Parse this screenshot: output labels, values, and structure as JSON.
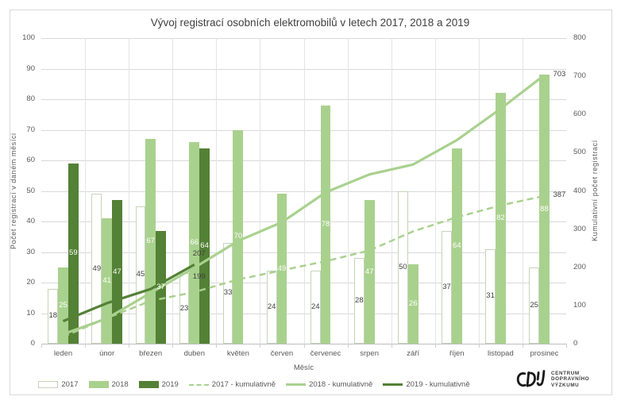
{
  "chart_data": {
    "type": "combo",
    "title": "Vývoj registrací osobních elektromobilů v letech 2017, 2018 a 2019",
    "xlabel": "Měsíc",
    "ylabel_left": "Počet registrací v daném měsíci",
    "ylabel_right": "Kumulativní počet registrací",
    "ylim_left": [
      0,
      100
    ],
    "ylim_right": [
      0,
      800
    ],
    "yticks_left": [
      0,
      10,
      20,
      30,
      40,
      50,
      60,
      70,
      80,
      90,
      100
    ],
    "yticks_right": [
      0,
      100,
      200,
      300,
      400,
      500,
      600,
      700,
      800
    ],
    "grid": true,
    "legend_position": "bottom",
    "categories": [
      "leden",
      "únor",
      "březen",
      "duben",
      "květen",
      "červen",
      "červenec",
      "srpen",
      "září",
      "říjen",
      "listopad",
      "prosinec"
    ],
    "bar_series": [
      {
        "name": "2017",
        "fill": "#ffffff",
        "border": "#c7d3ba",
        "label_color": "#404040",
        "values": [
          18,
          49,
          45,
          23,
          33,
          24,
          24,
          28,
          50,
          37,
          31,
          25
        ]
      },
      {
        "name": "2018",
        "fill": "#a9d18e",
        "border": "#a9d18e",
        "label_color": "#ffffff",
        "values": [
          25,
          41,
          67,
          66,
          70,
          49,
          78,
          47,
          26,
          64,
          82,
          88
        ]
      },
      {
        "name": "2019",
        "fill": "#538135",
        "border": "#538135",
        "label_color": "#ffffff",
        "values": [
          59,
          47,
          37,
          64,
          null,
          null,
          null,
          null,
          null,
          null,
          null,
          null
        ]
      }
    ],
    "line_series": [
      {
        "name": "2017 - kumulativně",
        "color": "#a9d18e",
        "dash": true,
        "axis": "right",
        "values": [
          18,
          67,
          112,
          135,
          168,
          192,
          216,
          244,
          294,
          331,
          362,
          387
        ]
      },
      {
        "name": "2018 - kumulativně",
        "color": "#a9d18e",
        "dash": false,
        "axis": "right",
        "values": [
          25,
          66,
          133,
          199,
          269,
          318,
          396,
          443,
          469,
          533,
          615,
          703
        ]
      },
      {
        "name": "2019 - kumulativně",
        "color": "#538135",
        "dash": false,
        "axis": "right",
        "values": [
          59,
          106,
          143,
          207,
          null,
          null,
          null,
          null,
          null,
          null,
          null,
          null
        ]
      }
    ],
    "annotations": [
      {
        "text": "703",
        "category_index": 11,
        "value": 703,
        "placement": "right"
      },
      {
        "text": "387",
        "category_index": 11,
        "value": 387,
        "placement": "right"
      },
      {
        "text": "207",
        "category_index": 3,
        "value": 207,
        "placement": "above"
      },
      {
        "text": "199",
        "category_index": 3,
        "value": 199,
        "placement": "below"
      }
    ],
    "legend": [
      {
        "label": "2017",
        "swatch": "bar",
        "fill": "#ffffff",
        "border": "#c7d3ba"
      },
      {
        "label": "2018",
        "swatch": "bar",
        "fill": "#a9d18e",
        "border": "#a9d18e"
      },
      {
        "label": "2019",
        "swatch": "bar",
        "fill": "#538135",
        "border": "#538135"
      },
      {
        "label": "2017 - kumulativně",
        "swatch": "dash",
        "color": "#a9d18e"
      },
      {
        "label": "2018 - kumulativně",
        "swatch": "line",
        "color": "#a9d18e"
      },
      {
        "label": "2019 - kumulativně",
        "swatch": "line",
        "color": "#538135"
      }
    ],
    "colors": {
      "light_green": "#a9d18e",
      "dark_green": "#538135",
      "gridline": "#d9d9d9",
      "axis_text": "#595959",
      "title_text": "#404040"
    }
  },
  "logo": {
    "mark": "CDV",
    "lines": [
      "CENTRUM",
      "DOPRAVNÍHO",
      "VÝZKUMU"
    ]
  }
}
